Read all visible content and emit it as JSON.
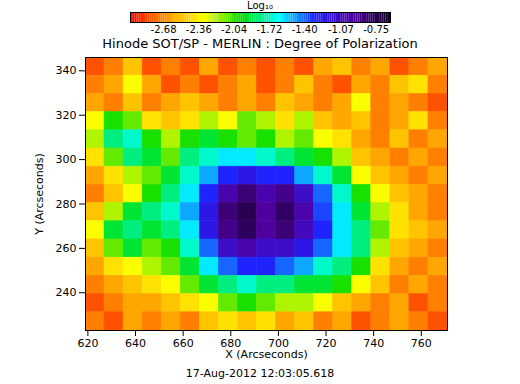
{
  "chart_data": {
    "type": "heatmap",
    "title": "Hinode SOT/SP - MERLIN : Degree of Polarization",
    "annotation": "17-Aug-2012 12:03:05.618",
    "x_label": "X (Arcseconds)",
    "y_label": "Y (Arcseconds)",
    "xlim": [
      619,
      771
    ],
    "ylim": [
      223,
      346
    ],
    "xticks": [
      620,
      640,
      660,
      680,
      700,
      720,
      740,
      760
    ],
    "yticks": [
      240,
      260,
      280,
      300,
      320,
      340
    ],
    "x_edges": [
      619,
      627,
      635,
      643,
      651,
      659,
      667,
      675,
      683,
      691,
      699,
      707,
      715,
      723,
      731,
      739,
      747,
      755,
      763,
      771
    ],
    "y_edges": [
      346,
      337.8,
      329.6,
      321.4,
      313.2,
      305,
      296.8,
      288.6,
      280.4,
      272.2,
      264,
      255.8,
      247.6,
      239.4,
      231.2,
      223
    ],
    "z": [
      [
        -2.8,
        -2.7,
        -2.5,
        -2.8,
        -2.7,
        -2.8,
        -2.6,
        -2.8,
        -2.7,
        -2.8,
        -2.7,
        -2.8,
        -2.6,
        -2.5,
        -2.7,
        -2.6,
        -2.8,
        -2.7,
        -2.6
      ],
      [
        -2.7,
        -2.6,
        -2.3,
        -2.6,
        -2.8,
        -2.7,
        -2.8,
        -2.7,
        -2.6,
        -2.8,
        -2.7,
        -2.5,
        -2.7,
        -2.8,
        -2.6,
        -2.7,
        -2.5,
        -2.4,
        -2.7
      ],
      [
        -2.6,
        -2.7,
        -2.5,
        -2.7,
        -2.6,
        -2.5,
        -2.6,
        -2.7,
        -2.6,
        -2.7,
        -2.5,
        -2.6,
        -2.7,
        -2.6,
        -2.3,
        -2.7,
        -2.6,
        -2.7,
        -2.8
      ],
      [
        -2.3,
        -2.0,
        -2.1,
        -2.4,
        -2.5,
        -2.4,
        -2.2,
        -2.3,
        -2.1,
        -2.2,
        -2.4,
        -2.2,
        -2.5,
        -2.6,
        -2.5,
        -2.7,
        -2.6,
        -2.4,
        -2.7
      ],
      [
        -2.2,
        -1.8,
        -1.7,
        -2.0,
        -2.2,
        -2.0,
        -1.9,
        -2.0,
        -2.1,
        -2.0,
        -2.2,
        -2.1,
        -2.3,
        -2.4,
        -2.6,
        -2.7,
        -2.5,
        -2.7,
        -2.6
      ],
      [
        -2.4,
        -2.1,
        -1.8,
        -1.9,
        -2.1,
        -1.8,
        -1.7,
        -1.6,
        -1.6,
        -1.7,
        -1.8,
        -1.9,
        -2.0,
        -2.2,
        -2.5,
        -2.6,
        -2.7,
        -2.6,
        -2.7
      ],
      [
        -2.6,
        -2.4,
        -2.2,
        -2.1,
        -1.9,
        -1.7,
        -1.5,
        -1.3,
        -1.2,
        -1.3,
        -1.3,
        -1.5,
        -1.7,
        -1.9,
        -2.3,
        -2.5,
        -2.6,
        -2.7,
        -2.6
      ],
      [
        -2.7,
        -2.5,
        -2.3,
        -2.0,
        -1.8,
        -1.6,
        -1.3,
        -1.0,
        -0.85,
        -1.0,
        -0.9,
        -1.1,
        -1.4,
        -1.7,
        -2.0,
        -2.3,
        -2.5,
        -2.6,
        -2.7
      ],
      [
        -2.5,
        -2.2,
        -1.9,
        -1.8,
        -1.7,
        -1.5,
        -1.2,
        -0.85,
        -0.75,
        -0.95,
        -0.8,
        -1.0,
        -1.35,
        -1.6,
        -1.9,
        -2.2,
        -2.4,
        -2.6,
        -2.7
      ],
      [
        -2.3,
        -1.9,
        -1.8,
        -1.9,
        -1.8,
        -1.6,
        -1.2,
        -0.9,
        -0.78,
        -0.95,
        -0.85,
        -1.05,
        -1.3,
        -1.6,
        -1.8,
        -2.1,
        -2.4,
        -2.5,
        -2.6
      ],
      [
        -2.5,
        -2.1,
        -1.9,
        -2.1,
        -2.0,
        -1.7,
        -1.4,
        -1.1,
        -1.0,
        -1.1,
        -1.1,
        -1.2,
        -1.4,
        -1.6,
        -1.8,
        -2.2,
        -2.5,
        -2.6,
        -2.7
      ],
      [
        -2.6,
        -2.4,
        -2.3,
        -2.2,
        -2.1,
        -1.9,
        -1.6,
        -1.4,
        -1.3,
        -1.3,
        -1.4,
        -1.5,
        -1.7,
        -1.8,
        -2.0,
        -2.4,
        -2.6,
        -2.7,
        -2.6
      ],
      [
        -2.7,
        -2.6,
        -2.5,
        -2.4,
        -2.3,
        -2.1,
        -1.9,
        -1.8,
        -1.7,
        -1.8,
        -1.8,
        -1.9,
        -1.9,
        -2.0,
        -2.3,
        -2.5,
        -2.7,
        -2.6,
        -2.7
      ],
      [
        -2.8,
        -2.7,
        -2.6,
        -2.6,
        -2.5,
        -2.4,
        -2.3,
        -2.1,
        -2.0,
        -2.1,
        -2.2,
        -2.2,
        -2.3,
        -2.5,
        -2.6,
        -2.7,
        -2.6,
        -2.8,
        -2.7
      ],
      [
        -2.7,
        -2.8,
        -2.6,
        -2.7,
        -2.6,
        -2.7,
        -2.5,
        -2.4,
        -2.5,
        -2.4,
        -2.6,
        -2.5,
        -2.7,
        -2.6,
        -2.8,
        -2.7,
        -2.6,
        -2.7,
        -2.8
      ]
    ],
    "colorbar": {
      "label": "Log₁₀",
      "range": [
        -2.98,
        -0.62
      ],
      "ticks": [
        -2.68,
        -2.36,
        -2.04,
        -1.72,
        {
          "value": -1.4,
          "label": "-1.40"
        },
        -1.07,
        -0.75
      ],
      "colors": [
        "#ff0000",
        "#ff9900",
        "#ffff00",
        "#00dd00",
        "#00ffff",
        "#2020ff",
        "#5000a0",
        "#100020"
      ]
    }
  }
}
